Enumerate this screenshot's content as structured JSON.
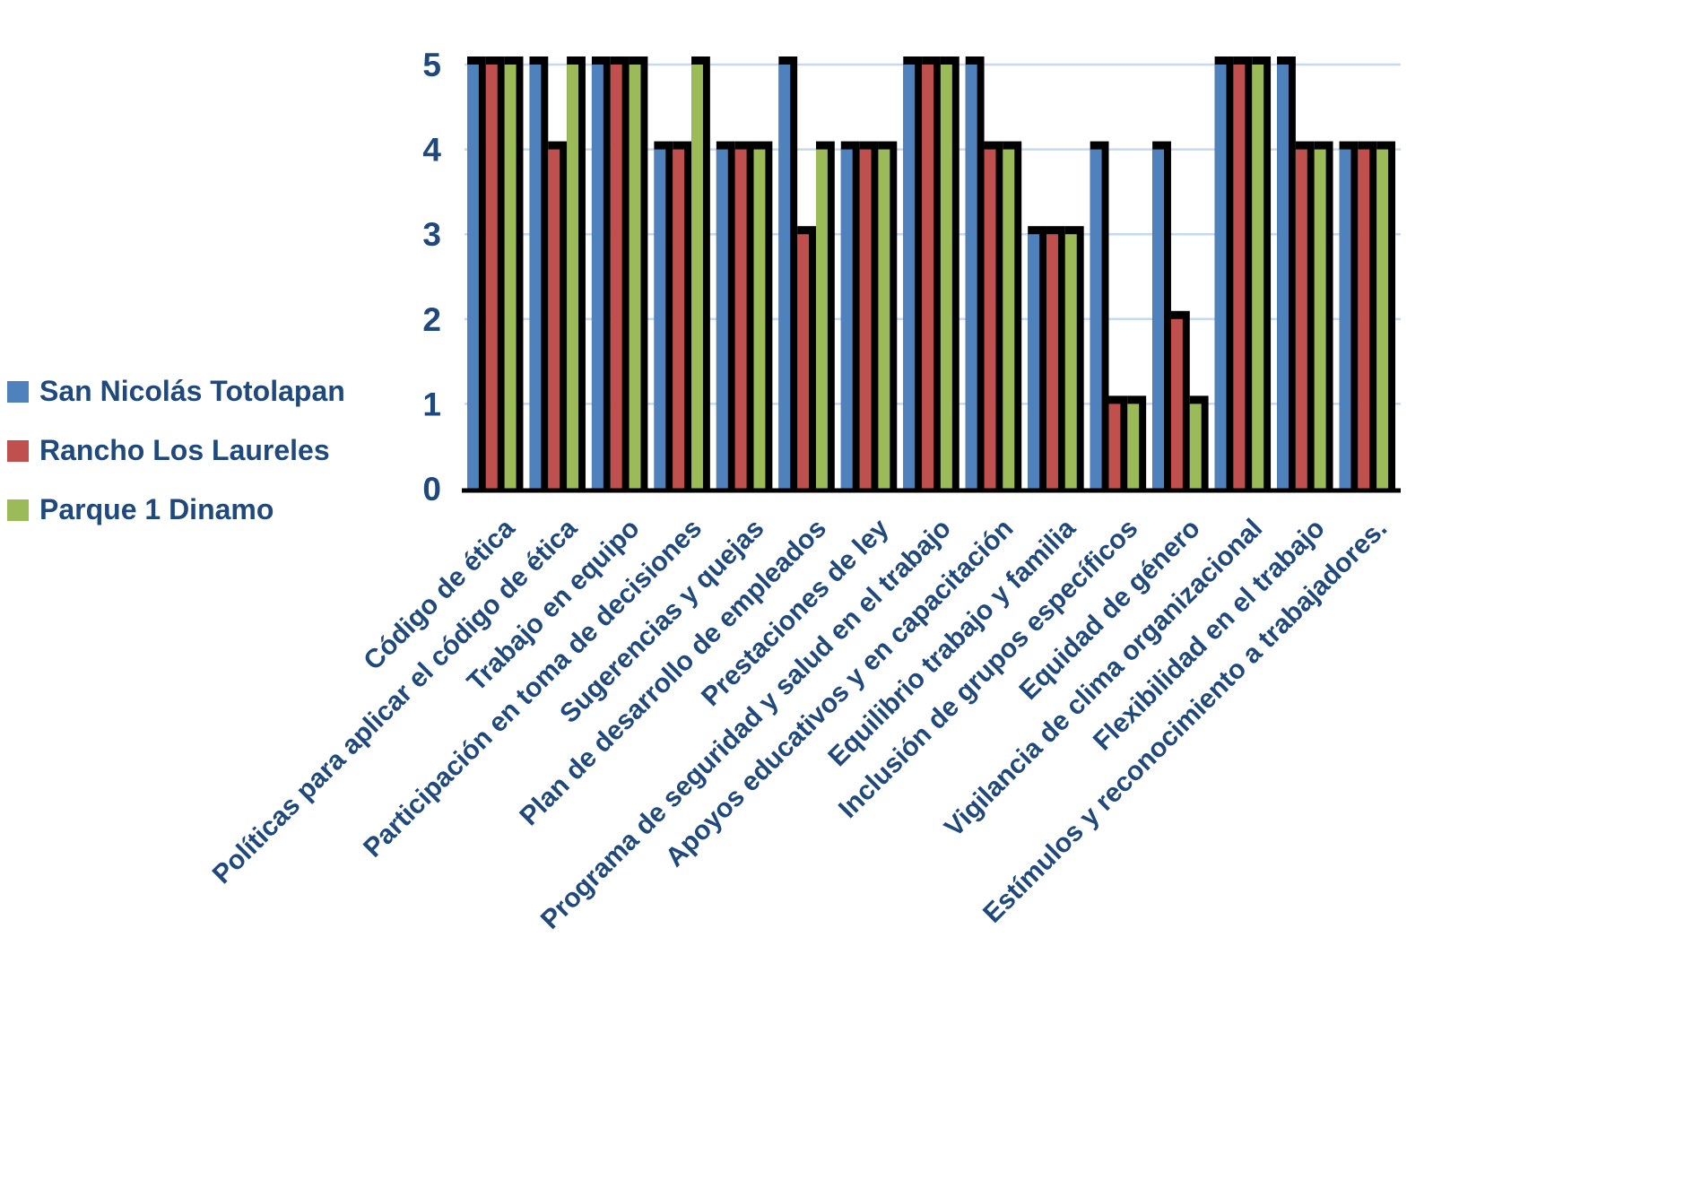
{
  "chart_data": {
    "type": "bar",
    "title": "",
    "xlabel": "",
    "ylabel": "",
    "ylim": [
      0,
      5
    ],
    "yticks": [
      0,
      1,
      2,
      3,
      4,
      5
    ],
    "grid": true,
    "legend_position": "left",
    "style": "3d-clustered-column-black-shadow",
    "categories": [
      "Código de ética",
      "Políticas para aplicar el código de ética",
      "Trabajo en equipo",
      "Participación en toma de decisiones",
      "Sugerencias y quejas",
      "Plan de desarrollo de empleados",
      "Prestaciones de ley",
      "Programa de seguridad y salud en el trabajo",
      "Apoyos educativos y en capacitación",
      "Equilibrio trabajo y familia",
      "Inclusión de grupos específicos",
      "Equidad de género",
      "Vigilancia de clima organizacional",
      "Flexibilidad en el trabajo",
      "Estímulos y reconocimiento a trabajadores."
    ],
    "series": [
      {
        "name": "San Nicolás Totolapan",
        "color": "#4F81BD",
        "values": [
          5,
          5,
          5,
          4,
          4,
          5,
          4,
          5,
          5,
          3,
          4,
          4,
          5,
          5,
          4
        ]
      },
      {
        "name": "Rancho Los Laureles",
        "color": "#C0504D",
        "values": [
          5,
          4,
          5,
          4,
          4,
          3,
          4,
          5,
          4,
          3,
          1,
          2,
          5,
          4,
          4
        ]
      },
      {
        "name": "Parque 1 Dinamo",
        "color": "#9BBB59",
        "values": [
          5,
          5,
          5,
          5,
          4,
          4,
          4,
          5,
          4,
          3,
          1,
          1,
          5,
          4,
          4
        ]
      }
    ]
  },
  "colors": {
    "axis_text": "#1F497D",
    "gridline": "#C5D9F1",
    "bar_shadow": "#000000",
    "axis_line": "#000000",
    "background": "#ffffff"
  }
}
